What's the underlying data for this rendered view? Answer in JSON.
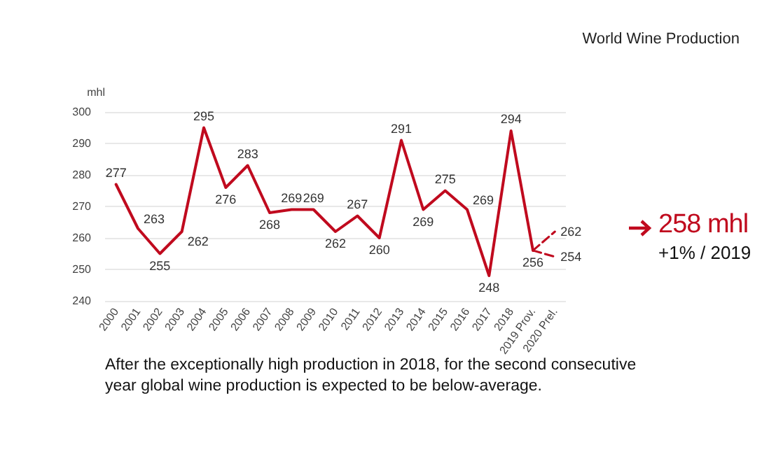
{
  "chart_data": {
    "type": "line",
    "title": "World Wine Production",
    "ylabel": "mhl",
    "categories": [
      "2000",
      "2001",
      "2002",
      "2003",
      "2004",
      "2005",
      "2006",
      "2007",
      "2008",
      "2009",
      "2010",
      "2011",
      "2012",
      "2013",
      "2014",
      "2015",
      "2016",
      "2017",
      "2018",
      "2019 Prov.",
      "2020 Prel."
    ],
    "series": [
      {
        "color": "#c00a1e",
        "line_style": "solid",
        "values": [
          277,
          263,
          255,
          262,
          295,
          276,
          283,
          268,
          269,
          269,
          262,
          267,
          260,
          291,
          269,
          275,
          269,
          248,
          294,
          256,
          null
        ],
        "value_labels": [
          "277",
          "263",
          "255",
          "262",
          "295",
          "276",
          "283",
          "268",
          "269",
          "269",
          "262",
          "267",
          "260",
          "291",
          "269",
          "275",
          "269",
          "248",
          "294",
          "256",
          null
        ]
      },
      {
        "color": "#c00a1e",
        "line_style": "dashed",
        "values": [
          null,
          null,
          null,
          null,
          null,
          null,
          null,
          null,
          null,
          null,
          null,
          null,
          null,
          null,
          null,
          null,
          null,
          null,
          null,
          256,
          262
        ],
        "value_labels": [
          null,
          null,
          null,
          null,
          null,
          null,
          null,
          null,
          null,
          null,
          null,
          null,
          null,
          null,
          null,
          null,
          null,
          null,
          null,
          null,
          "262"
        ]
      },
      {
        "color": "#c00a1e",
        "line_style": "dashed",
        "values": [
          null,
          null,
          null,
          null,
          null,
          null,
          null,
          null,
          null,
          null,
          null,
          null,
          null,
          null,
          null,
          null,
          null,
          null,
          null,
          256,
          254
        ],
        "value_labels": [
          null,
          null,
          null,
          null,
          null,
          null,
          null,
          null,
          null,
          null,
          null,
          null,
          null,
          null,
          null,
          null,
          null,
          null,
          null,
          null,
          "254"
        ]
      }
    ],
    "ylim": [
      240,
      300
    ],
    "yticks": [
      240,
      250,
      260,
      270,
      280,
      290,
      300
    ],
    "grid": "y",
    "marker": "none",
    "annotations": [
      "258 mhl",
      "+1% / 2019",
      "After the exceptionally high production in 2018, for the second consecutive year global wine production is expected to be below-average."
    ]
  }
}
